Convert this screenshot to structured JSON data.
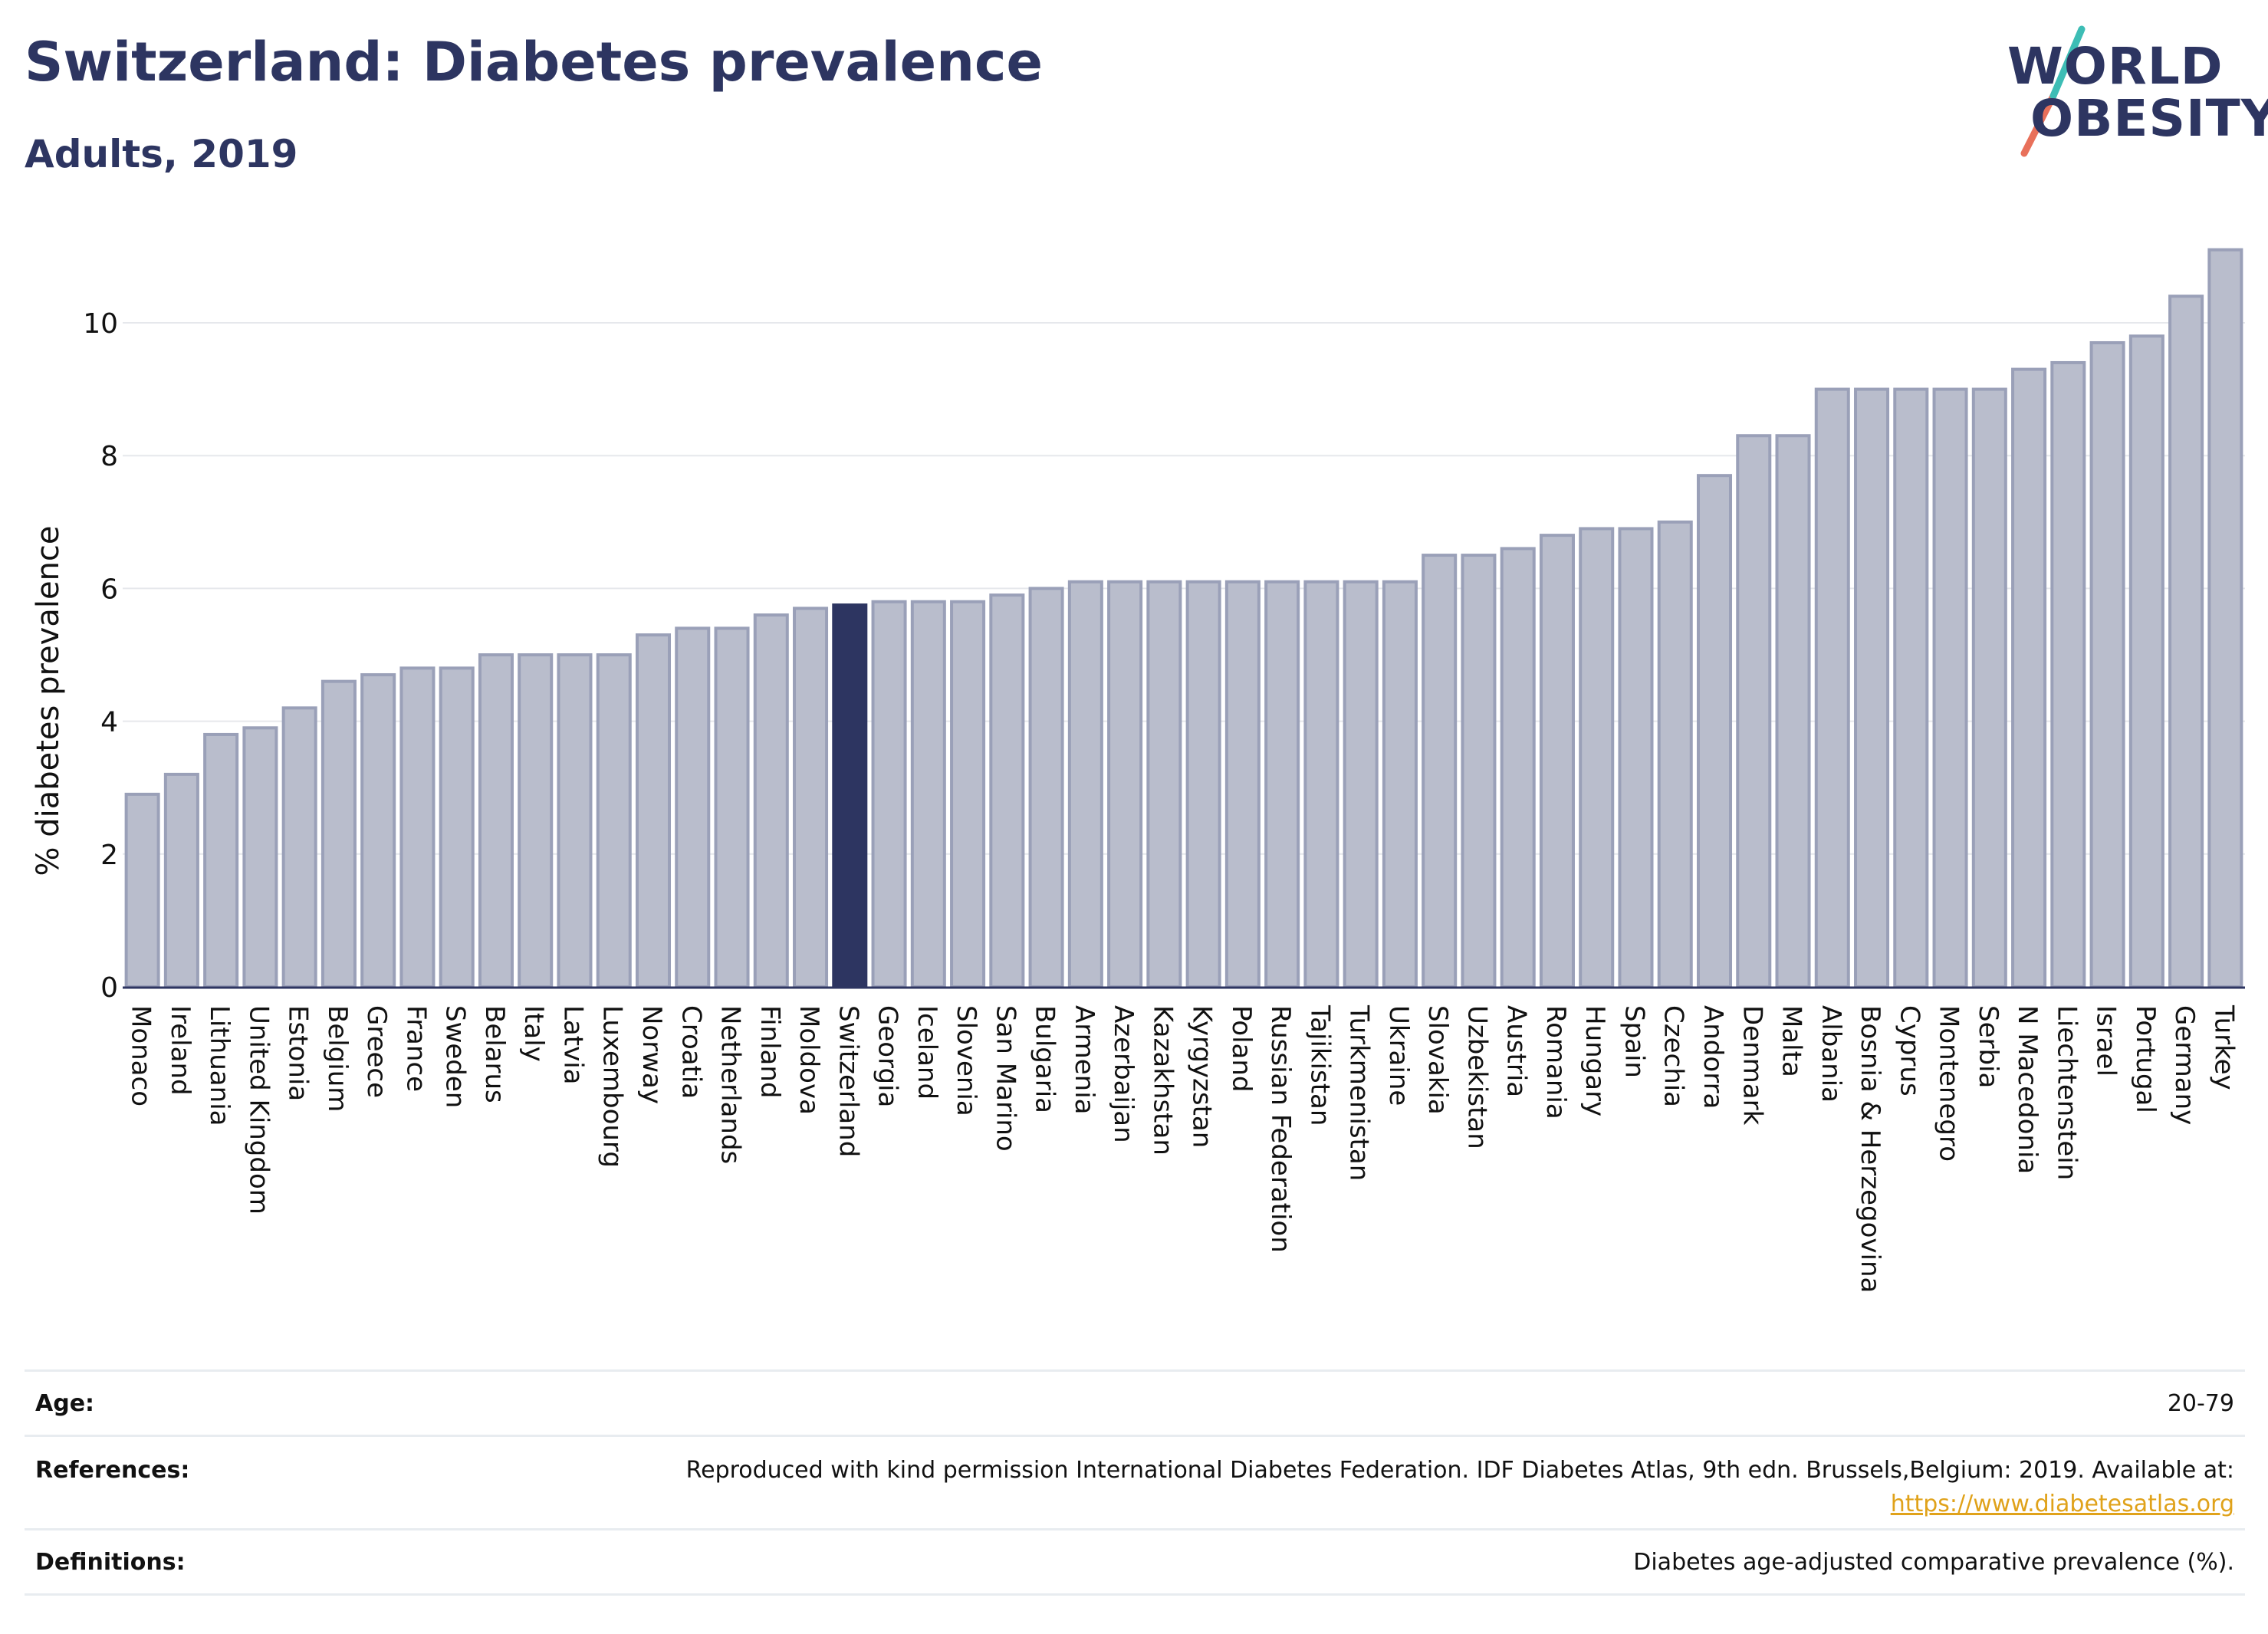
{
  "header": {
    "title": "Switzerland: Diabetes prevalence",
    "subtitle": "Adults, 2019"
  },
  "logo": {
    "line1": "WORLD",
    "line2": "OBESITY",
    "colors": {
      "text": "#2d3561",
      "slash_top": "#3dbdb5",
      "slash_bottom": "#e8705a"
    }
  },
  "colors": {
    "bar": "#b9bdcc",
    "bar_border": "#9aa0b8",
    "highlight": "#2d3561",
    "axis_text": "#111111",
    "grid": "#e6e8ec"
  },
  "chart_data": {
    "type": "bar",
    "title": "Switzerland: Diabetes prevalence",
    "subtitle": "Adults, 2019",
    "xlabel": "",
    "ylabel": "% diabetes prevalence",
    "ylim": [
      0,
      11.5
    ],
    "yticks": [
      0,
      2,
      4,
      6,
      8,
      10
    ],
    "grid": true,
    "highlight": "Switzerland",
    "categories": [
      "Monaco",
      "Ireland",
      "Lithuania",
      "United Kingdom",
      "Estonia",
      "Belgium",
      "Greece",
      "France",
      "Sweden",
      "Belarus",
      "Italy",
      "Latvia",
      "Luxembourg",
      "Norway",
      "Croatia",
      "Netherlands",
      "Finland",
      "Moldova",
      "Switzerland",
      "Georgia",
      "Iceland",
      "Slovenia",
      "San Marino",
      "Bulgaria",
      "Armenia",
      "Azerbaijan",
      "Kazakhstan",
      "Kyrgyzstan",
      "Poland",
      "Russian Federation",
      "Tajikistan",
      "Turkmenistan",
      "Ukraine",
      "Slovakia",
      "Uzbekistan",
      "Austria",
      "Romania",
      "Hungary",
      "Spain",
      "Czechia",
      "Andorra",
      "Denmark",
      "Malta",
      "Albania",
      "Bosnia & Herzegovina",
      "Cyprus",
      "Montenegro",
      "Serbia",
      "N Macedonia",
      "Liechtenstein",
      "Israel",
      "Portugal",
      "Germany",
      "Turkey"
    ],
    "values": [
      2.9,
      3.2,
      3.8,
      3.9,
      4.2,
      4.6,
      4.7,
      4.8,
      4.8,
      5.0,
      5.0,
      5.0,
      5.0,
      5.3,
      5.4,
      5.4,
      5.6,
      5.7,
      5.75,
      5.8,
      5.8,
      5.8,
      5.9,
      6.0,
      6.1,
      6.1,
      6.1,
      6.1,
      6.1,
      6.1,
      6.1,
      6.1,
      6.1,
      6.5,
      6.5,
      6.6,
      6.8,
      6.9,
      6.9,
      7.0,
      7.7,
      8.3,
      8.3,
      9.0,
      9.0,
      9.0,
      9.0,
      9.0,
      9.3,
      9.4,
      9.7,
      9.8,
      10.4,
      11.1
    ]
  },
  "info": {
    "age_label": "Age:",
    "age_value": "20-79",
    "references_label": "References:",
    "references_text": "Reproduced with kind permission International Diabetes Federation. IDF Diabetes Atlas, 9th edn. Brussels,Belgium: 2019. Available at:",
    "references_link": "https://www.diabetesatlas.org",
    "definitions_label": "Definitions:",
    "definitions_value": "Diabetes age-adjusted comparative prevalence (%)."
  }
}
